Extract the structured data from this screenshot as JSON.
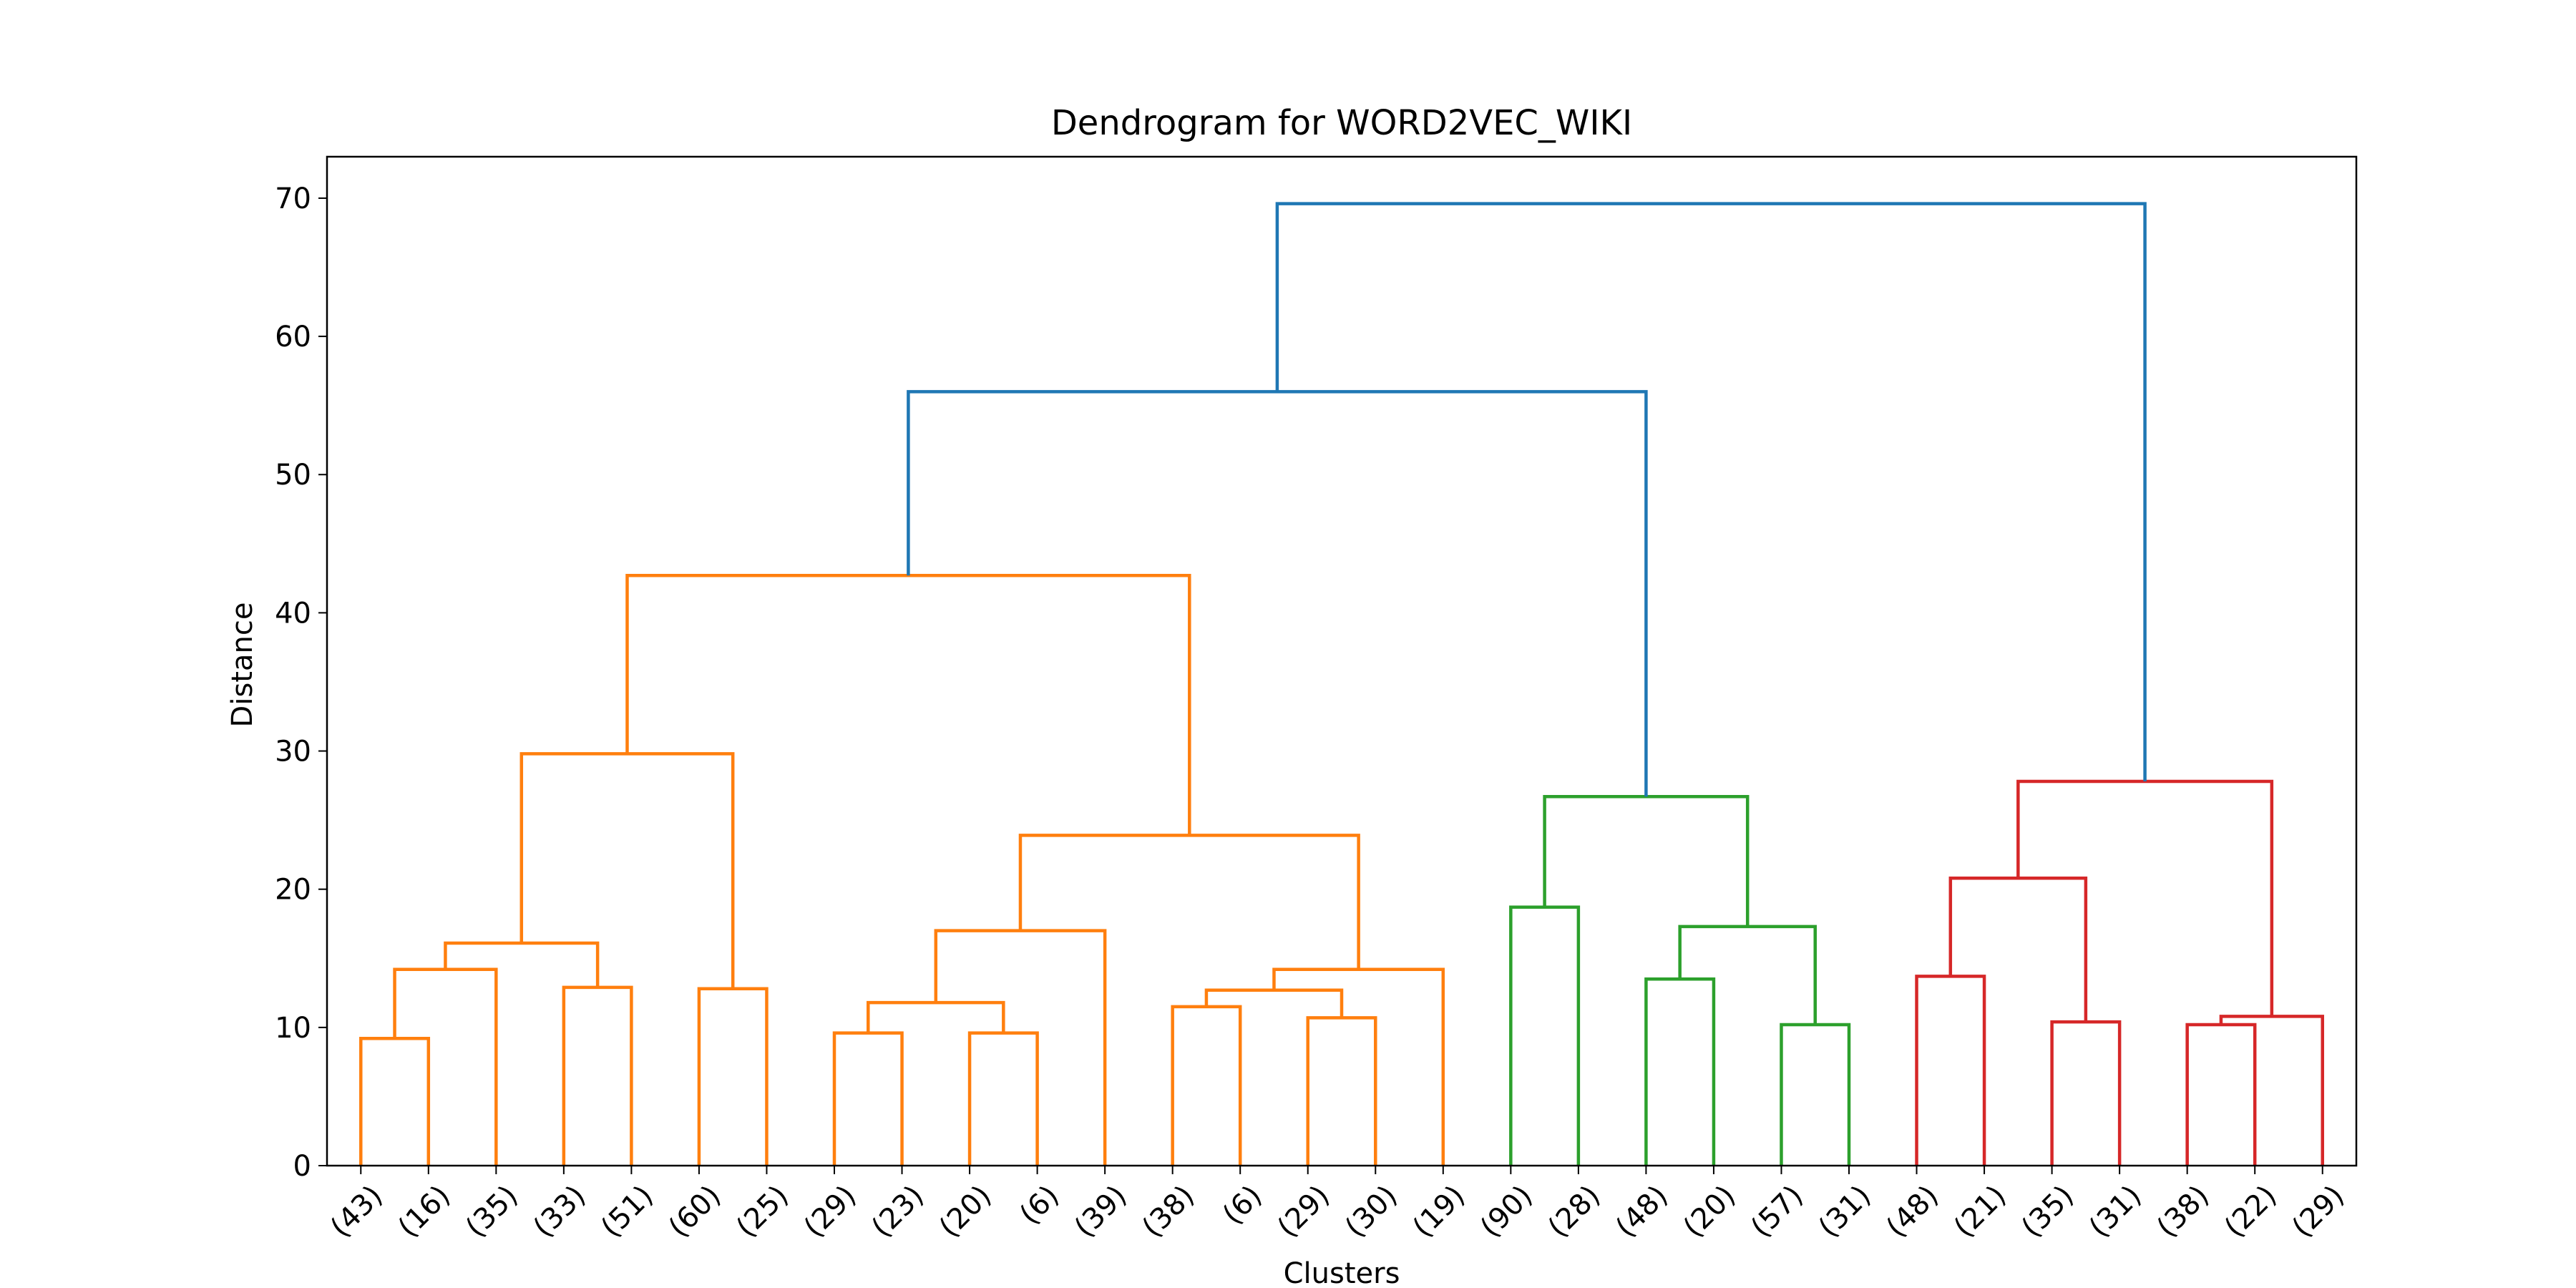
{
  "chart_data": {
    "type": "dendrogram",
    "title": "Dendrogram for WORD2VEC_WIKI",
    "xlabel": "Clusters",
    "ylabel": "Distance",
    "ylim": [
      0,
      73
    ],
    "y_ticks": [
      0,
      10,
      20,
      30,
      40,
      50,
      60,
      70
    ],
    "grid": false,
    "leaf_labels": [
      "(43)",
      "(16)",
      "(35)",
      "(33)",
      "(51)",
      "(60)",
      "(25)",
      "(29)",
      "(23)",
      "(20)",
      "(6)",
      "(39)",
      "(38)",
      "(6)",
      "(29)",
      "(30)",
      "(19)",
      "(90)",
      "(28)",
      "(48)",
      "(20)",
      "(57)",
      "(31)",
      "(48)",
      "(21)",
      "(35)",
      "(31)",
      "(38)",
      "(22)",
      "(29)"
    ],
    "colors": {
      "orange": "#ff7f0e",
      "green": "#2ca02c",
      "red": "#d62728",
      "blue": "#1f77b4"
    },
    "merges": [
      {
        "left": "L0",
        "right": "L1",
        "height": 9.2,
        "color": "orange"
      },
      {
        "left": "M0",
        "right": "L2",
        "height": 14.2,
        "color": "orange"
      },
      {
        "left": "L3",
        "right": "L4",
        "height": 12.9,
        "color": "orange"
      },
      {
        "left": "M1",
        "right": "M2",
        "height": 16.1,
        "color": "orange"
      },
      {
        "left": "L5",
        "right": "L6",
        "height": 12.8,
        "color": "orange"
      },
      {
        "left": "M3",
        "right": "M4",
        "height": 29.8,
        "color": "orange"
      },
      {
        "left": "L7",
        "right": "L8",
        "height": 9.6,
        "color": "orange"
      },
      {
        "left": "L9",
        "right": "L10",
        "height": 9.6,
        "color": "orange"
      },
      {
        "left": "M6",
        "right": "M7",
        "height": 11.8,
        "color": "orange"
      },
      {
        "left": "M8",
        "right": "L11",
        "height": 17.0,
        "color": "orange"
      },
      {
        "left": "L12",
        "right": "L13",
        "height": 11.5,
        "color": "orange"
      },
      {
        "left": "L14",
        "right": "L15",
        "height": 10.7,
        "color": "orange"
      },
      {
        "left": "M10",
        "right": "M11",
        "height": 12.7,
        "color": "orange"
      },
      {
        "left": "M12",
        "right": "L16",
        "height": 14.2,
        "color": "orange"
      },
      {
        "left": "M9",
        "right": "M13",
        "height": 23.9,
        "color": "orange"
      },
      {
        "left": "M5",
        "right": "M14",
        "height": 42.7,
        "color": "orange"
      },
      {
        "left": "L17",
        "right": "L18",
        "height": 18.7,
        "color": "green"
      },
      {
        "left": "L19",
        "right": "L20",
        "height": 13.5,
        "color": "green"
      },
      {
        "left": "L21",
        "right": "L22",
        "height": 10.2,
        "color": "green"
      },
      {
        "left": "M17",
        "right": "M18",
        "height": 17.3,
        "color": "green"
      },
      {
        "left": "M16",
        "right": "M19",
        "height": 26.7,
        "color": "green"
      },
      {
        "left": "M15",
        "right": "M20",
        "height": 56.0,
        "color": "blue"
      },
      {
        "left": "L23",
        "right": "L24",
        "height": 13.7,
        "color": "red"
      },
      {
        "left": "L25",
        "right": "L26",
        "height": 10.4,
        "color": "red"
      },
      {
        "left": "M22",
        "right": "M23",
        "height": 20.8,
        "color": "red"
      },
      {
        "left": "L27",
        "right": "L28",
        "height": 10.2,
        "color": "red"
      },
      {
        "left": "M25",
        "right": "L29",
        "height": 10.8,
        "color": "red"
      },
      {
        "left": "M24",
        "right": "M26",
        "height": 27.8,
        "color": "red"
      },
      {
        "left": "M21",
        "right": "M27",
        "height": 69.6,
        "color": "blue"
      }
    ]
  }
}
